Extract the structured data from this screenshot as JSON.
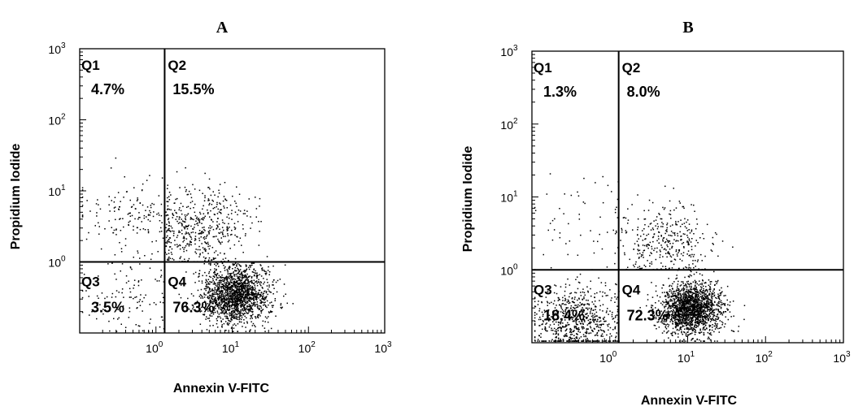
{
  "chart_data": [
    {
      "type": "scatter",
      "title": "A",
      "xlabel": "Annexin V-FITC",
      "ylabel": "Propidium Iodide",
      "x_scale": "log",
      "y_scale": "log",
      "xlim": [
        0.1,
        1000
      ],
      "ylim": [
        0.1,
        1000
      ],
      "x_ticks": [
        "10^0",
        "10^1",
        "10^2",
        "10^3"
      ],
      "y_ticks": [
        "10^0",
        "10^1",
        "10^2",
        "10^3"
      ],
      "x_gate": 1.3,
      "y_gate": 1.0,
      "quadrants": [
        {
          "name": "Q1",
          "percent": "4.7%"
        },
        {
          "name": "Q2",
          "percent": "15.5%"
        },
        {
          "name": "Q3",
          "percent": "3.5%"
        },
        {
          "name": "Q4",
          "percent": "76.3%"
        }
      ],
      "grid": false,
      "clusters": [
        {
          "quadrant": "Q1",
          "x_center": 0.45,
          "y_center": 4.5,
          "spread_log": 0.3,
          "count": 150
        },
        {
          "quadrant": "Q2",
          "x_center": 4.0,
          "y_center": 3.0,
          "spread_log": 0.33,
          "count": 500
        },
        {
          "quadrant": "Q3",
          "x_center": 0.45,
          "y_center": 0.3,
          "spread_log": 0.3,
          "count": 110
        },
        {
          "quadrant": "Q4",
          "x_center": 11.0,
          "y_center": 0.35,
          "spread_log": 0.22,
          "count": 1700
        }
      ]
    },
    {
      "type": "scatter",
      "title": "B",
      "xlabel": "Annexin V-FITC",
      "ylabel": "Propidium Iodide",
      "x_scale": "log",
      "y_scale": "log",
      "xlim": [
        0.1,
        1000
      ],
      "ylim": [
        0.1,
        1000
      ],
      "x_ticks": [
        "10^0",
        "10^1",
        "10^2",
        "10^3"
      ],
      "y_ticks": [
        "10^0",
        "10^1",
        "10^2",
        "10^3"
      ],
      "x_gate": 1.3,
      "y_gate": 1.0,
      "quadrants": [
        {
          "name": "Q1",
          "percent": "1.3%"
        },
        {
          "name": "Q2",
          "percent": "8.0%"
        },
        {
          "name": "Q3",
          "percent": "18.4%"
        },
        {
          "name": "Q4",
          "percent": "72.3%"
        }
      ],
      "grid": false,
      "clusters": [
        {
          "quadrant": "Q1",
          "x_center": 0.45,
          "y_center": 4.0,
          "spread_log": 0.4,
          "count": 60
        },
        {
          "quadrant": "Q2",
          "x_center": 5.0,
          "y_center": 2.5,
          "spread_log": 0.3,
          "count": 350
        },
        {
          "quadrant": "Q3",
          "x_center": 0.4,
          "y_center": 0.2,
          "spread_log": 0.28,
          "count": 700
        },
        {
          "quadrant": "Q4",
          "x_center": 11.0,
          "y_center": 0.3,
          "spread_log": 0.2,
          "count": 1800
        }
      ]
    }
  ]
}
